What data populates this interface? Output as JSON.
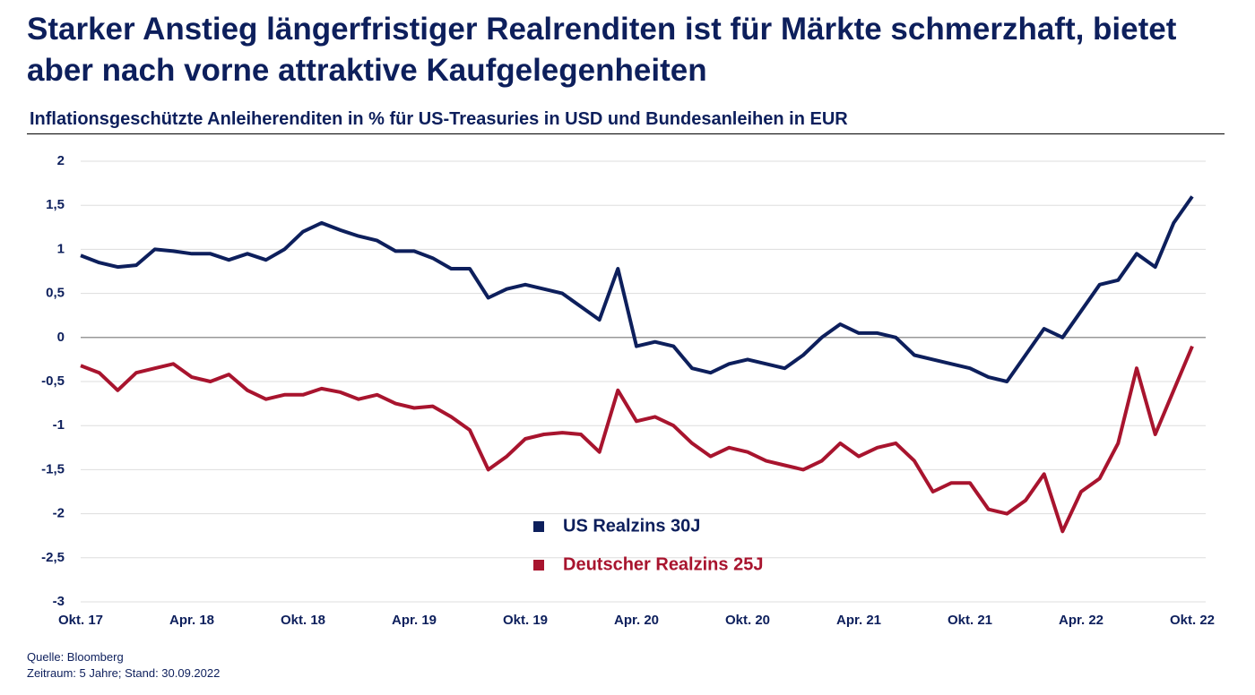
{
  "chart_data": {
    "type": "line",
    "title": "Starker Anstieg längerfristiger Realrenditen ist für Märkte schmerzhaft, bietet aber nach vorne attraktive Kaufgelegenheiten",
    "subtitle": "Inflationsgeschützte Anleiherenditen in % für US-Treasuries in USD und Bundesanleihen in EUR",
    "x": [
      "2017-10",
      "2017-11",
      "2017-12",
      "2018-01",
      "2018-02",
      "2018-03",
      "2018-04",
      "2018-05",
      "2018-06",
      "2018-07",
      "2018-08",
      "2018-09",
      "2018-10",
      "2018-11",
      "2018-12",
      "2019-01",
      "2019-02",
      "2019-03",
      "2019-04",
      "2019-05",
      "2019-06",
      "2019-07",
      "2019-08",
      "2019-09",
      "2019-10",
      "2019-11",
      "2019-12",
      "2020-01",
      "2020-02",
      "2020-03",
      "2020-04",
      "2020-05",
      "2020-06",
      "2020-07",
      "2020-08",
      "2020-09",
      "2020-10",
      "2020-11",
      "2020-12",
      "2021-01",
      "2021-02",
      "2021-03",
      "2021-04",
      "2021-05",
      "2021-06",
      "2021-07",
      "2021-08",
      "2021-09",
      "2021-10",
      "2021-11",
      "2021-12",
      "2022-01",
      "2022-02",
      "2022-03",
      "2022-04",
      "2022-05",
      "2022-06",
      "2022-07",
      "2022-08",
      "2022-09",
      "2022-10"
    ],
    "series": [
      {
        "name": "US Realzins 30J",
        "color": "#0d1f5c",
        "values": [
          0.93,
          0.85,
          0.8,
          0.82,
          1.0,
          0.98,
          0.95,
          0.95,
          0.88,
          0.95,
          0.88,
          1.0,
          1.2,
          1.3,
          1.22,
          1.15,
          1.1,
          0.98,
          0.98,
          0.9,
          0.78,
          0.78,
          0.45,
          0.55,
          0.6,
          0.55,
          0.5,
          0.35,
          0.2,
          0.78,
          -0.1,
          -0.05,
          -0.1,
          -0.35,
          -0.4,
          -0.3,
          -0.25,
          -0.3,
          -0.35,
          -0.2,
          0.0,
          0.15,
          0.05,
          0.05,
          0.0,
          -0.2,
          -0.25,
          -0.3,
          -0.35,
          -0.45,
          -0.5,
          -0.2,
          0.1,
          0.0,
          0.3,
          0.6,
          0.65,
          0.95,
          0.8,
          1.3,
          1.6
        ]
      },
      {
        "name": "Deutscher Realzins 25J",
        "color": "#a8142e",
        "values": [
          -0.32,
          -0.4,
          -0.6,
          -0.4,
          -0.35,
          -0.3,
          -0.45,
          -0.5,
          -0.42,
          -0.6,
          -0.7,
          -0.65,
          -0.65,
          -0.58,
          -0.62,
          -0.7,
          -0.65,
          -0.75,
          -0.8,
          -0.78,
          -0.9,
          -1.05,
          -1.5,
          -1.35,
          -1.15,
          -1.1,
          -1.08,
          -1.1,
          -1.3,
          -0.6,
          -0.95,
          -0.9,
          -1.0,
          -1.2,
          -1.35,
          -1.25,
          -1.3,
          -1.4,
          -1.45,
          -1.5,
          -1.4,
          -1.2,
          -1.35,
          -1.25,
          -1.2,
          -1.4,
          -1.75,
          -1.65,
          -1.65,
          -1.95,
          -2.0,
          -1.85,
          -1.55,
          -2.2,
          -1.75,
          -1.6,
          -1.2,
          -0.35,
          -1.1,
          -0.6,
          -0.1
        ]
      }
    ],
    "ylim": [
      -3,
      2
    ],
    "yticks": [
      2,
      {
        "value": 1.5,
        "label": "1,5"
      },
      1,
      {
        "value": 0.5,
        "label": "0,5"
      },
      0,
      {
        "value": -0.5,
        "label": "-0,5"
      },
      -1,
      {
        "value": -1.5,
        "label": "-1,5"
      },
      -2,
      {
        "value": -2.5,
        "label": "-2,5"
      },
      -3
    ],
    "xticks": [
      {
        "value": "2017-10",
        "label": "Okt. 17"
      },
      {
        "value": "2018-04",
        "label": "Apr. 18"
      },
      {
        "value": "2018-10",
        "label": "Okt. 18"
      },
      {
        "value": "2019-04",
        "label": "Apr. 19"
      },
      {
        "value": "2019-10",
        "label": "Okt. 19"
      },
      {
        "value": "2020-04",
        "label": "Apr. 20"
      },
      {
        "value": "2020-10",
        "label": "Okt. 20"
      },
      {
        "value": "2021-04",
        "label": "Apr. 21"
      },
      {
        "value": "2021-10",
        "label": "Okt. 21"
      },
      {
        "value": "2022-04",
        "label": "Apr. 22"
      },
      {
        "value": "2022-10",
        "label": "Okt. 22"
      }
    ],
    "grid": true,
    "source": "Quelle:  Bloomberg",
    "period": "Zeitraum:  5 Jahre;  Stand:  30.09.2022"
  }
}
